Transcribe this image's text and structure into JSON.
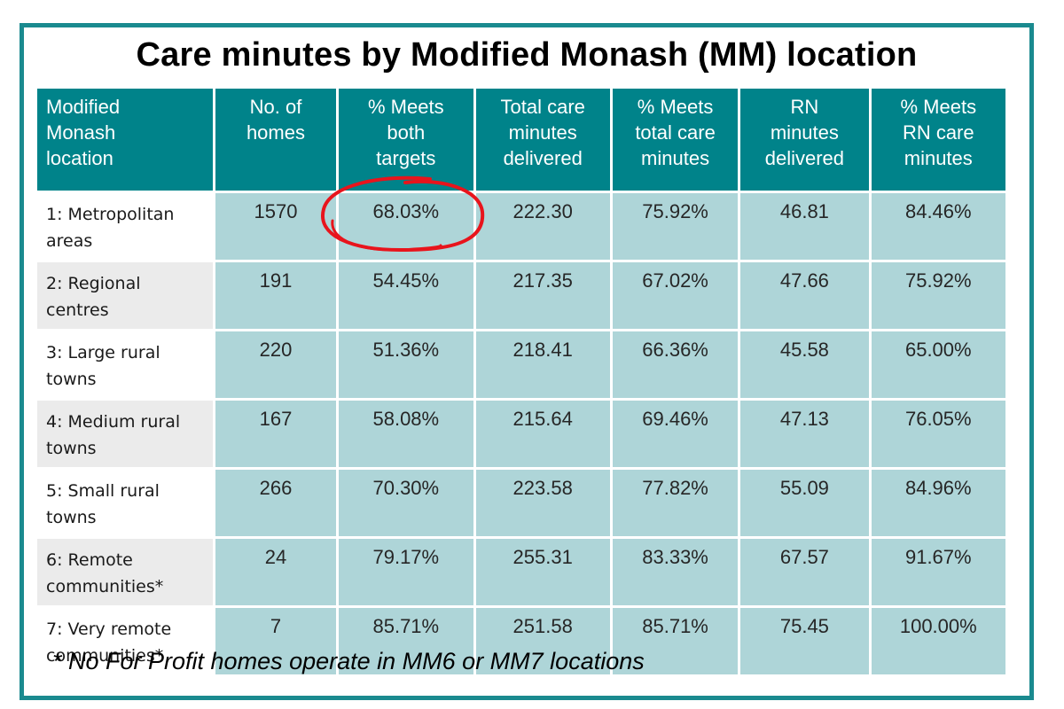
{
  "title": "Care minutes by Modified Monash (MM) location",
  "footnote": "* No For Profit homes operate in MM6 or MM7 locations",
  "colors": {
    "border": "#1a8a8f",
    "header_bg": "#00838a",
    "cell_bg": "#aed5d8",
    "label_bg_alt": "#ebebeb",
    "annotation": "#e8141c"
  },
  "annotation": {
    "type": "hand-drawn red circle",
    "target": "68.03%"
  },
  "chart_data": {
    "type": "table",
    "title": "Care minutes by Modified Monash (MM) location",
    "columns": [
      "Modified Monash location",
      "No. of homes",
      "% Meets both targets",
      "Total care minutes delivered",
      "% Meets total care minutes",
      "RN minutes delivered",
      "% Meets RN care minutes"
    ],
    "column_lines": [
      [
        "Modified",
        "Monash",
        "location"
      ],
      [
        "No. of",
        "homes"
      ],
      [
        "% Meets",
        "both",
        "targets"
      ],
      [
        "Total care",
        "minutes",
        "delivered"
      ],
      [
        "% Meets",
        "total care",
        "minutes"
      ],
      [
        "RN",
        "minutes",
        "delivered"
      ],
      [
        "% Meets",
        "RN care",
        "minutes"
      ]
    ],
    "rows": [
      {
        "label_lines": [
          "1: Metropolitan",
          "areas"
        ],
        "values": [
          "1570",
          "68.03%",
          "222.30",
          "75.92%",
          "46.81",
          "84.46%"
        ]
      },
      {
        "label_lines": [
          "2: Regional",
          "centres"
        ],
        "values": [
          "191",
          "54.45%",
          "217.35",
          "67.02%",
          "47.66",
          "75.92%"
        ]
      },
      {
        "label_lines": [
          "3: Large rural",
          "towns"
        ],
        "values": [
          "220",
          "51.36%",
          "218.41",
          "66.36%",
          "45.58",
          "65.00%"
        ]
      },
      {
        "label_lines": [
          "4: Medium rural",
          "towns"
        ],
        "values": [
          "167",
          "58.08%",
          "215.64",
          "69.46%",
          "47.13",
          "76.05%"
        ]
      },
      {
        "label_lines": [
          "5: Small rural",
          "towns"
        ],
        "values": [
          "266",
          "70.30%",
          "223.58",
          "77.82%",
          "55.09",
          "84.96%"
        ]
      },
      {
        "label_lines": [
          "6: Remote",
          "communities*"
        ],
        "values": [
          "24",
          "79.17%",
          "255.31",
          "83.33%",
          "67.57",
          "91.67%"
        ]
      },
      {
        "label_lines": [
          "7: Very remote",
          "communities*"
        ],
        "values": [
          "7",
          "85.71%",
          "251.58",
          "85.71%",
          "75.45",
          "100.00%"
        ]
      }
    ]
  }
}
